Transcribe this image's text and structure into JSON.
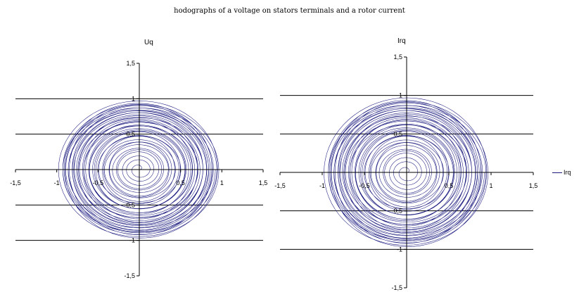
{
  "page": {
    "title": "hodographs of a voltage on stators terminals  and  a rotor current"
  },
  "legend": {
    "label": "Irq"
  },
  "colors": {
    "series": "#1c1c80",
    "axis": "#000000"
  },
  "chart_data": [
    {
      "type": "line",
      "title": "Uq",
      "xlim": [
        -1.5,
        1.5
      ],
      "ylim": [
        -1.5,
        1.5
      ],
      "x_ticks": [
        "-1,5",
        "-1",
        "-0,5",
        "0",
        "0,5",
        "1",
        "1,5"
      ],
      "y_ticks": [
        "-1,5",
        "-1",
        "-0,5",
        "0,5",
        "1",
        "1,5"
      ],
      "gridlines_y": [
        -1,
        -0.5,
        0.5,
        1
      ],
      "series": [
        {
          "shape": "spiral hodograph",
          "center": [
            0,
            0
          ],
          "max_radius_x": 1.0,
          "max_radius_y": 1.0,
          "turns": 40
        }
      ]
    },
    {
      "type": "line",
      "title": "Irq",
      "xlim": [
        -1.5,
        1.5
      ],
      "ylim": [
        -1.5,
        1.5
      ],
      "x_ticks": [
        "-1,5",
        "-1",
        "-0,5",
        "0",
        "0,5",
        "1",
        "1,5"
      ],
      "y_ticks": [
        "-1,5",
        "-1",
        "-0,5",
        "0,5",
        "1",
        "1,5"
      ],
      "gridlines_y": [
        -1,
        -0.5,
        0.5,
        1
      ],
      "legend": "right",
      "series": [
        {
          "name": "Irq",
          "shape": "spiral hodograph",
          "center": [
            0,
            0
          ],
          "max_radius_x": 1.0,
          "max_radius_y": 1.0,
          "turns": 40
        }
      ]
    }
  ]
}
